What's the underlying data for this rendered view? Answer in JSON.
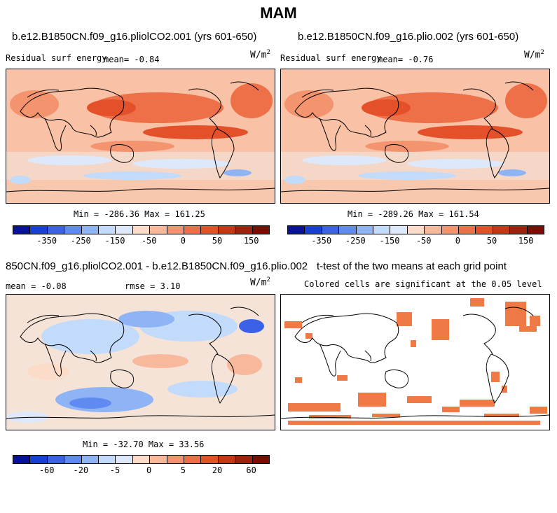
{
  "title": "MAM",
  "panels": {
    "top_left": {
      "case": "b.e12.B1850CN.f09_g16.pliolCO2.001 (yrs 601-650)",
      "variable": "Residual surf energy",
      "mean": "mean=  -0.84",
      "units": "W/m",
      "units_sup": "2",
      "stats": "Min = -286.36 Max = 161.25"
    },
    "top_right": {
      "case": "b.e12.B1850CN.f09_g16.plio.002 (yrs 601-650)",
      "variable": "Residual surf energy",
      "mean": "mean=  -0.76",
      "units": "W/m",
      "units_sup": "2",
      "stats": "Min = -289.26 Max = 161.54"
    },
    "bottom_left": {
      "case": "850CN.f09_g16.pliolCO2.001 - b.e12.B1850CN.f09_g16.plio.002",
      "mean": "mean =  -0.08",
      "rmse": "rmse =   3.10",
      "units": "W/m",
      "units_sup": "2",
      "stats": "Min = -32.70 Max = 33.56"
    },
    "bottom_right": {
      "case": "t-test of the two means at each grid point",
      "subtitle": "Colored cells are significant at the 0.05 level"
    }
  },
  "chart_data": [
    {
      "type": "heatmap",
      "name": "top-left-map",
      "colorbar_labels": [
        "-350",
        "-250",
        "-150",
        "-50",
        "0",
        "50",
        "150"
      ],
      "colorbar_colors": [
        "#08119a",
        "#1a3fd6",
        "#3b62e6",
        "#5f8af0",
        "#8fb4f6",
        "#c2dbfb",
        "#dde9fb",
        "#fbdcc9",
        "#f8b89b",
        "#f3946e",
        "#ee7048",
        "#e4502a",
        "#c83618",
        "#a0220c",
        "#7a0d04"
      ]
    },
    {
      "type": "heatmap",
      "name": "top-right-map",
      "colorbar_labels": [
        "-350",
        "-250",
        "-150",
        "-50",
        "0",
        "50",
        "150"
      ],
      "colorbar_colors": [
        "#08119a",
        "#1a3fd6",
        "#3b62e6",
        "#5f8af0",
        "#8fb4f6",
        "#c2dbfb",
        "#dde9fb",
        "#fbdcc9",
        "#f8b89b",
        "#f3946e",
        "#ee7048",
        "#e4502a",
        "#c83618",
        "#a0220c",
        "#7a0d04"
      ]
    },
    {
      "type": "heatmap",
      "name": "difference-map",
      "colorbar_labels": [
        "-60",
        "-20",
        "-5",
        "0",
        "5",
        "20",
        "60"
      ],
      "colorbar_colors": [
        "#08119a",
        "#1a3fd6",
        "#3b62e6",
        "#5f8af0",
        "#8fb4f6",
        "#c2dbfb",
        "#dde9fb",
        "#fbdcc9",
        "#f8b89b",
        "#f3946e",
        "#ee7048",
        "#e4502a",
        "#c83618",
        "#a0220c",
        "#7a0d04"
      ]
    },
    {
      "type": "heatmap",
      "name": "significance-map",
      "significant_color": "#f07a45"
    }
  ]
}
